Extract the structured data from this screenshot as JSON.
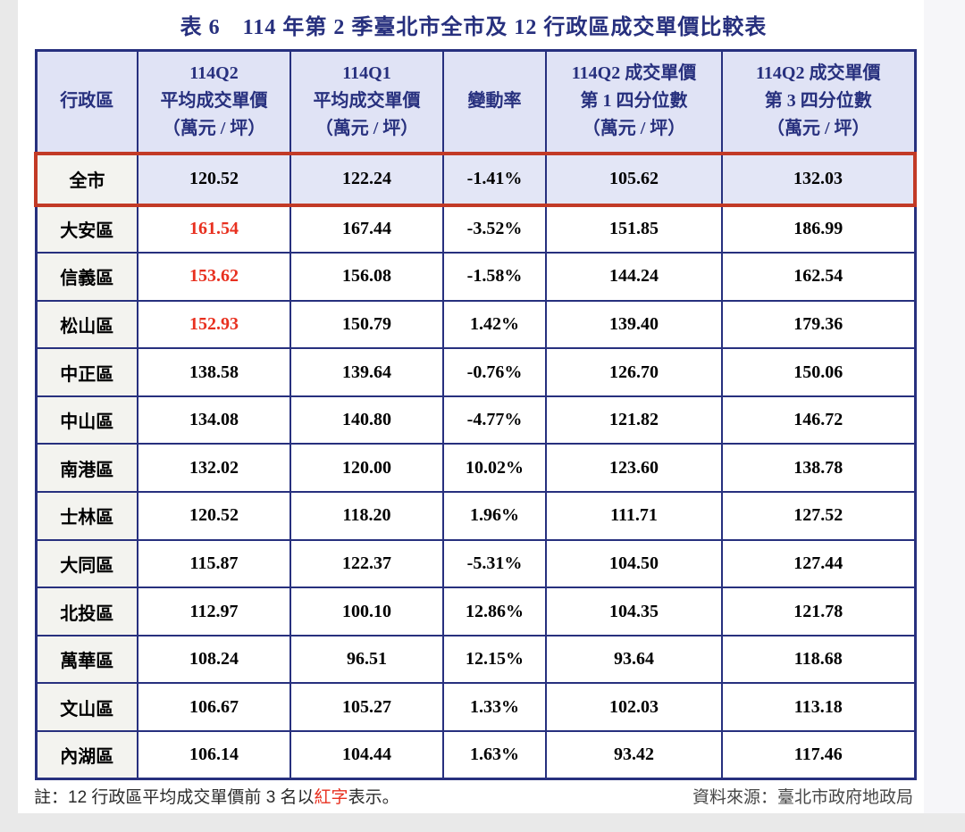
{
  "title": "表 6　114 年第 2 季臺北市全市及 12 行政區成交單價比較表",
  "table": {
    "columns": [
      {
        "id": "district",
        "label_lines": [
          "行政區"
        ]
      },
      {
        "id": "q2_avg",
        "label_lines": [
          "114Q2",
          "平均成交單價",
          "（萬元 / 坪）"
        ]
      },
      {
        "id": "q1_avg",
        "label_lines": [
          "114Q1",
          "平均成交單價",
          "（萬元 / 坪）"
        ]
      },
      {
        "id": "change",
        "label_lines": [
          "變動率"
        ]
      },
      {
        "id": "q2_p25",
        "label_lines": [
          "114Q2 成交單價",
          "第 1 四分位數",
          "（萬元 / 坪）"
        ]
      },
      {
        "id": "q2_p75",
        "label_lines": [
          "114Q2 成交單價",
          "第 3 四分位數",
          "（萬元 / 坪）"
        ]
      }
    ],
    "rows": [
      {
        "district": "全市",
        "q2_avg": "120.52",
        "q1_avg": "122.24",
        "change": "-1.41%",
        "q2_p25": "105.62",
        "q2_p75": "132.03",
        "highlight": "city",
        "red_avg": false
      },
      {
        "district": "大安區",
        "q2_avg": "161.54",
        "q1_avg": "167.44",
        "change": "-3.52%",
        "q2_p25": "151.85",
        "q2_p75": "186.99",
        "highlight": "",
        "red_avg": true
      },
      {
        "district": "信義區",
        "q2_avg": "153.62",
        "q1_avg": "156.08",
        "change": "-1.58%",
        "q2_p25": "144.24",
        "q2_p75": "162.54",
        "highlight": "",
        "red_avg": true
      },
      {
        "district": "松山區",
        "q2_avg": "152.93",
        "q1_avg": "150.79",
        "change": "1.42%",
        "q2_p25": "139.40",
        "q2_p75": "179.36",
        "highlight": "",
        "red_avg": true
      },
      {
        "district": "中正區",
        "q2_avg": "138.58",
        "q1_avg": "139.64",
        "change": "-0.76%",
        "q2_p25": "126.70",
        "q2_p75": "150.06",
        "highlight": "",
        "red_avg": false
      },
      {
        "district": "中山區",
        "q2_avg": "134.08",
        "q1_avg": "140.80",
        "change": "-4.77%",
        "q2_p25": "121.82",
        "q2_p75": "146.72",
        "highlight": "",
        "red_avg": false
      },
      {
        "district": "南港區",
        "q2_avg": "132.02",
        "q1_avg": "120.00",
        "change": "10.02%",
        "q2_p25": "123.60",
        "q2_p75": "138.78",
        "highlight": "",
        "red_avg": false
      },
      {
        "district": "士林區",
        "q2_avg": "120.52",
        "q1_avg": "118.20",
        "change": "1.96%",
        "q2_p25": "111.71",
        "q2_p75": "127.52",
        "highlight": "",
        "red_avg": false
      },
      {
        "district": "大同區",
        "q2_avg": "115.87",
        "q1_avg": "122.37",
        "change": "-5.31%",
        "q2_p25": "104.50",
        "q2_p75": "127.44",
        "highlight": "",
        "red_avg": false
      },
      {
        "district": "北投區",
        "q2_avg": "112.97",
        "q1_avg": "100.10",
        "change": "12.86%",
        "q2_p25": "104.35",
        "q2_p75": "121.78",
        "highlight": "",
        "red_avg": false
      },
      {
        "district": "萬華區",
        "q2_avg": "108.24",
        "q1_avg": "96.51",
        "change": "12.15%",
        "q2_p25": "93.64",
        "q2_p75": "118.68",
        "highlight": "",
        "red_avg": false
      },
      {
        "district": "文山區",
        "q2_avg": "106.67",
        "q1_avg": "105.27",
        "change": "1.33%",
        "q2_p25": "102.03",
        "q2_p75": "113.18",
        "highlight": "",
        "red_avg": false
      },
      {
        "district": "內湖區",
        "q2_avg": "106.14",
        "q1_avg": "104.44",
        "change": "1.63%",
        "q2_p25": "93.42",
        "q2_p75": "117.46",
        "highlight": "",
        "red_avg": false
      }
    ]
  },
  "footer": {
    "note_prefix": "註：12 行政區平均成交單價前 3 名以",
    "note_red_word": "紅字",
    "note_suffix": "表示。",
    "source": "資料來源：臺北市政府地政局"
  },
  "colors": {
    "navy": "#27307e",
    "header_bg": "#e0e3f5",
    "city_row_bg": "#e3e6f6",
    "name_cell_bg": "#f3f3ef",
    "red_border": "#c23a26",
    "red_text": "#e8301f",
    "note_text": "#2b2b2b",
    "source_text": "#474747",
    "page_margin": "#e9e9e9",
    "page_margin_right": "#f6f6f9"
  }
}
